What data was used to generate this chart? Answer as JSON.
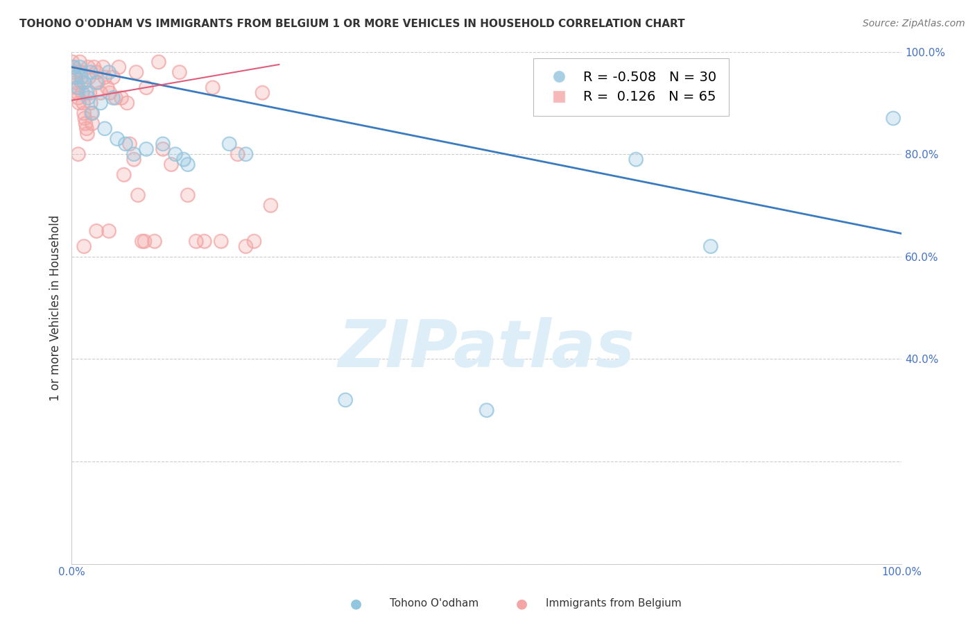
{
  "title": "TOHONO O'ODHAM VS IMMIGRANTS FROM BELGIUM 1 OR MORE VEHICLES IN HOUSEHOLD CORRELATION CHART",
  "source": "Source: ZipAtlas.com",
  "ylabel": "1 or more Vehicles in Household",
  "blue_R": -0.508,
  "blue_N": 30,
  "pink_R": 0.126,
  "pink_N": 65,
  "blue_label": "Tohono O'odham",
  "pink_label": "Immigrants from Belgium",
  "blue_color": "#92c5de",
  "pink_color": "#f4a6a6",
  "blue_trend_color": "#3a7abf",
  "pink_trend_color": "#e05c7a",
  "watermark_color": "#ddeef8",
  "background_color": "#ffffff",
  "grid_color": "#cccccc",
  "xlim": [
    0,
    100
  ],
  "ylim": [
    0,
    100
  ],
  "blue_trend_x": [
    0,
    100
  ],
  "blue_trend_y": [
    97.0,
    64.5
  ],
  "pink_trend_x": [
    0,
    25
  ],
  "pink_trend_y": [
    90.5,
    97.5
  ],
  "blue_points_x": [
    0.3,
    0.5,
    0.8,
    1.0,
    1.2,
    1.5,
    1.8,
    2.0,
    2.3,
    2.5,
    3.0,
    3.5,
    4.0,
    4.5,
    5.0,
    5.5,
    6.5,
    7.5,
    9.0,
    11.0,
    12.5,
    13.5,
    14.0,
    19.0,
    21.0,
    33.0,
    50.0,
    68.0,
    77.0,
    99.0
  ],
  "blue_points_y": [
    97,
    95,
    93,
    97,
    95,
    94,
    92,
    91,
    96,
    88,
    94,
    90,
    85,
    96,
    91,
    83,
    82,
    80,
    81,
    82,
    80,
    79,
    78,
    82,
    80,
    32,
    30,
    79,
    62,
    87
  ],
  "pink_points_x": [
    0.1,
    0.2,
    0.3,
    0.4,
    0.5,
    0.6,
    0.7,
    0.8,
    0.9,
    1.0,
    1.1,
    1.2,
    1.3,
    1.4,
    1.5,
    1.6,
    1.7,
    1.8,
    1.9,
    2.0,
    2.1,
    2.2,
    2.3,
    2.4,
    2.5,
    2.7,
    3.0,
    3.2,
    3.5,
    3.8,
    4.0,
    4.3,
    4.6,
    5.0,
    5.3,
    5.7,
    6.0,
    6.3,
    6.7,
    7.0,
    7.5,
    7.8,
    8.0,
    8.5,
    8.8,
    9.0,
    10.0,
    10.5,
    11.0,
    12.0,
    13.0,
    14.0,
    15.0,
    16.0,
    17.0,
    18.0,
    20.0,
    21.0,
    22.0,
    23.0,
    24.0,
    3.0,
    4.5,
    0.8,
    1.5
  ],
  "pink_points_y": [
    98,
    97,
    96,
    95,
    94,
    93,
    92,
    91,
    90,
    98,
    96,
    94,
    92,
    90,
    88,
    87,
    86,
    85,
    84,
    97,
    95,
    92,
    90,
    88,
    86,
    97,
    96,
    94,
    92,
    97,
    95,
    93,
    92,
    95,
    91,
    97,
    91,
    76,
    90,
    82,
    79,
    96,
    72,
    63,
    63,
    93,
    63,
    98,
    81,
    78,
    96,
    72,
    63,
    63,
    93,
    63,
    80,
    62,
    63,
    92,
    70,
    65,
    65,
    80,
    62
  ]
}
